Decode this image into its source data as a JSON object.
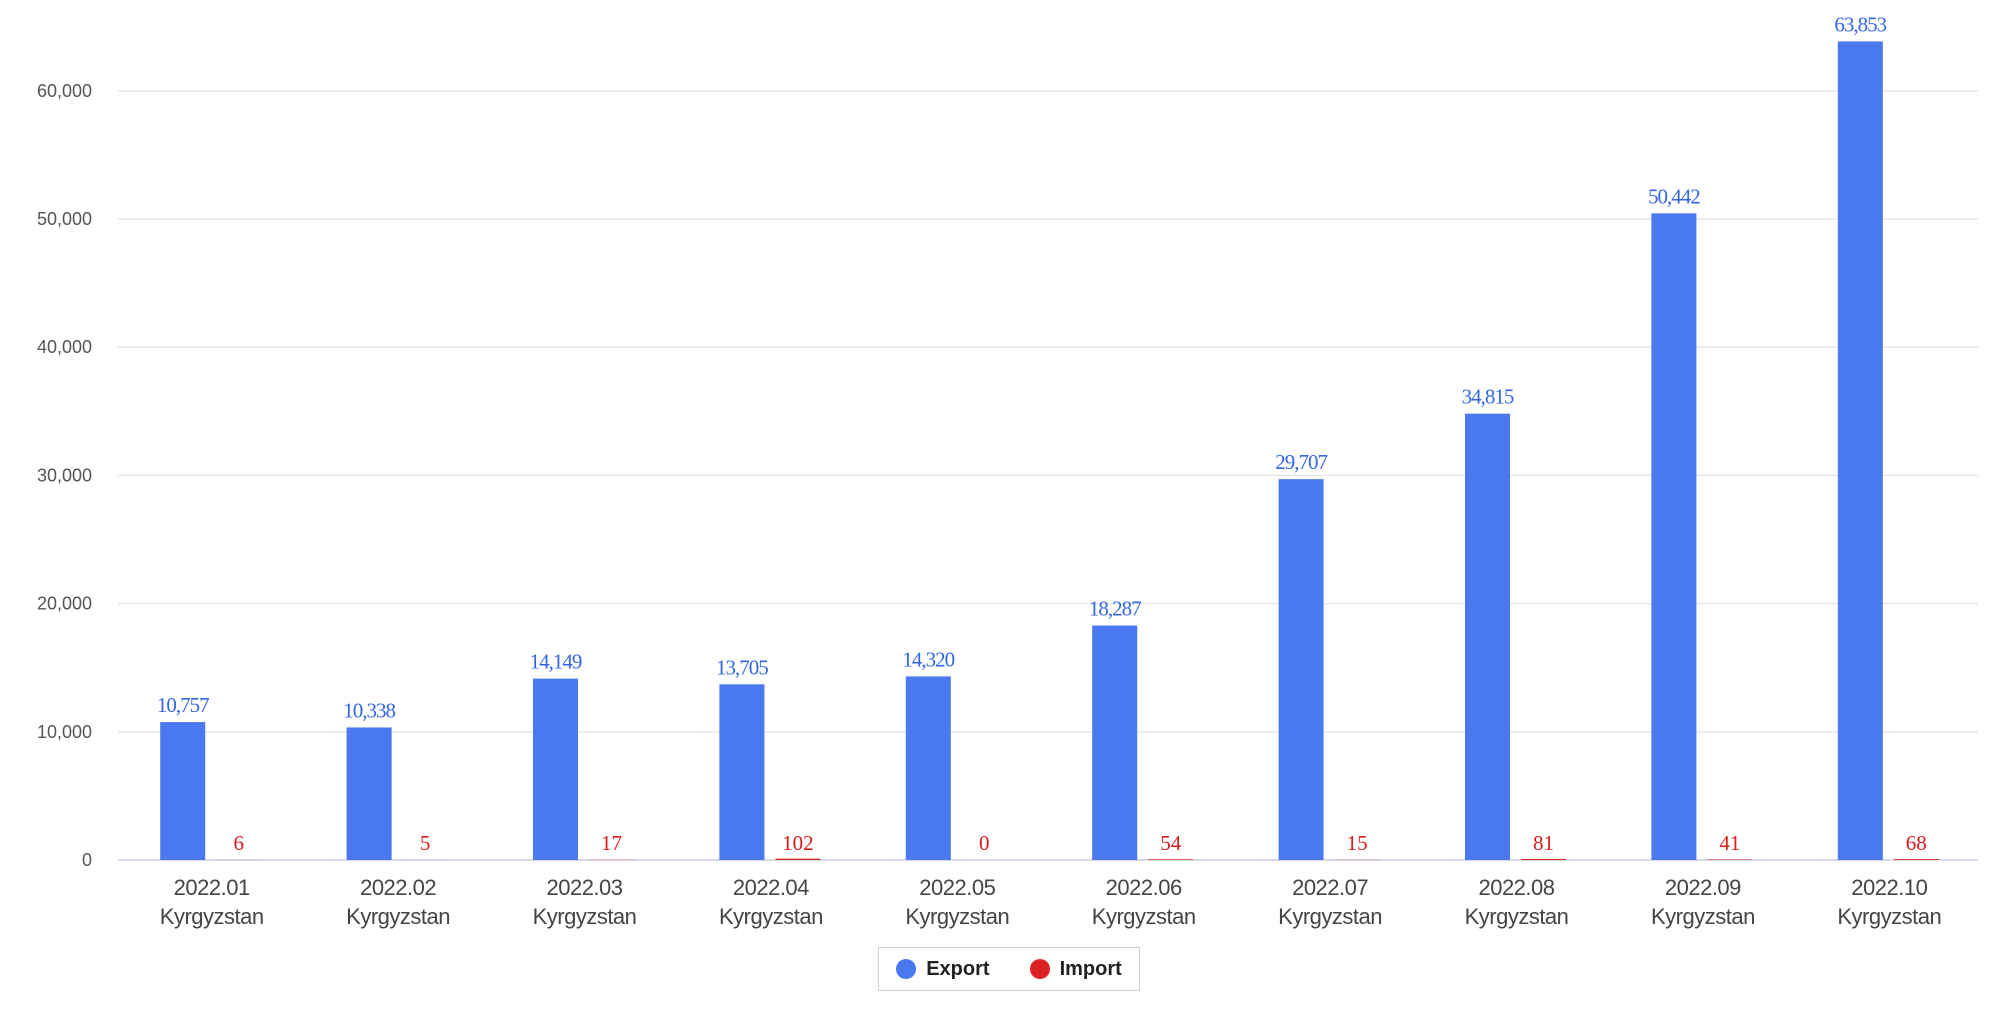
{
  "chart_data": {
    "type": "bar",
    "categories": [
      [
        "2022.01",
        "Kyrgyzstan"
      ],
      [
        "2022.02",
        "Kyrgyzstan"
      ],
      [
        "2022.03",
        "Kyrgyzstan"
      ],
      [
        "2022.04",
        "Kyrgyzstan"
      ],
      [
        "2022.05",
        "Kyrgyzstan"
      ],
      [
        "2022.06",
        "Kyrgyzstan"
      ],
      [
        "2022.07",
        "Kyrgyzstan"
      ],
      [
        "2022.08",
        "Kyrgyzstan"
      ],
      [
        "2022.09",
        "Kyrgyzstan"
      ],
      [
        "2022.10",
        "Kyrgyzstan"
      ]
    ],
    "series": [
      {
        "name": "Export",
        "color": "#4a78ee",
        "label_color": "#3366e6",
        "values": [
          10757,
          10338,
          14149,
          13705,
          14320,
          18287,
          29707,
          34815,
          50442,
          63853
        ],
        "labels": [
          "10,757",
          "10,338",
          "14,149",
          "13,705",
          "14,320",
          "18,287",
          "29,707",
          "34,815",
          "50,442",
          "63,853"
        ]
      },
      {
        "name": "Import",
        "color": "#dd2222",
        "label_color": "#dd1a1a",
        "values": [
          6,
          5,
          17,
          102,
          0,
          54,
          15,
          81,
          41,
          68
        ],
        "labels": [
          "6",
          "5",
          "17",
          "102",
          "0",
          "54",
          "15",
          "81",
          "41",
          "68"
        ]
      }
    ],
    "ylim": [
      0,
      63853
    ],
    "yticks": [
      0,
      10000,
      20000,
      30000,
      40000,
      50000,
      60000
    ],
    "ytick_labels": [
      "0",
      "10,000",
      "20,000",
      "30,000",
      "40,000",
      "50,000",
      "60,000"
    ],
    "grid": true,
    "legend": "bottom-center",
    "title": "",
    "xlabel": "",
    "ylabel": ""
  }
}
